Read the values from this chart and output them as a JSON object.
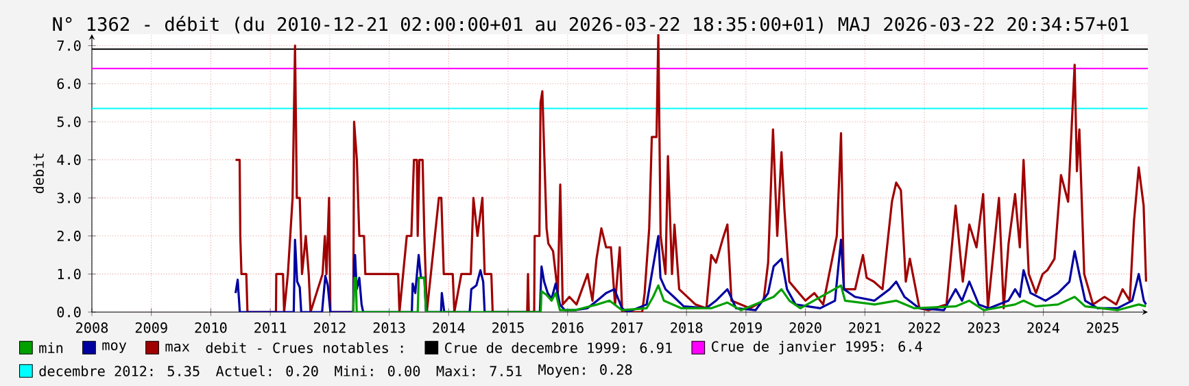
{
  "chart_data": {
    "type": "line",
    "title": "N° 1362 - débit (du 2010-12-21 02:00:00+01 au 2026-03-22 18:35:00+01) MAJ 2026-03-22 20:34:57+01",
    "ylabel": "debit",
    "xlim": [
      "2008-01-01",
      "2025-10-05"
    ],
    "ylim": [
      0,
      7.3
    ],
    "xticks": [
      "2008",
      "2009",
      "2010",
      "2011",
      "2012",
      "2013",
      "2014",
      "2015",
      "2016",
      "2017",
      "2018",
      "2019",
      "2020",
      "2021",
      "2022",
      "2023",
      "2024",
      "2025"
    ],
    "yticks": [
      {
        "value": 0,
        "label": "0.0"
      },
      {
        "value": 1,
        "label": "1.0"
      },
      {
        "value": 2,
        "label": "2.0"
      },
      {
        "value": 3,
        "label": "3.0"
      },
      {
        "value": 4,
        "label": "4.0"
      },
      {
        "value": 5,
        "label": "5.0"
      },
      {
        "value": 6,
        "label": "6.0"
      },
      {
        "value": 7,
        "label": "7.0"
      }
    ],
    "grid": true,
    "legend": "bottom",
    "line_style": "solid",
    "series": [
      {
        "name": "min",
        "color": "#00a000",
        "x": [
          "2012-05-25",
          "2012-06-01",
          "2012-06-10",
          "2012-06-15",
          "2013-06-25",
          "2013-07-01",
          "2013-08-05",
          "2013-08-15",
          "2015-07-20",
          "2015-07-25",
          "2015-08-25",
          "2015-09-25",
          "2015-10-20",
          "2015-11-15",
          "2016-02-15",
          "2016-07-01",
          "2016-09-15",
          "2016-12-01",
          "2017-05-01",
          "2017-06-10",
          "2017-07-12",
          "2017-08-15",
          "2017-12-01",
          "2018-06-01",
          "2018-09-09",
          "2018-12-01",
          "2019-06-20",
          "2019-08-07",
          "2019-09-25",
          "2019-12-01",
          "2020-08-07",
          "2020-09-01",
          "2021-03-01",
          "2021-07-12",
          "2021-11-01",
          "2022-07-12",
          "2022-10-04",
          "2023-01-01",
          "2023-07-12",
          "2023-09-02",
          "2023-11-15",
          "2024-04-01",
          "2024-07-12",
          "2024-09-15",
          "2025-04-01",
          "2025-08-10",
          "2025-09-24"
        ],
        "values": [
          0,
          0.9,
          0.9,
          0,
          0,
          0.9,
          0.9,
          0,
          0,
          0.55,
          0.45,
          0.3,
          0.5,
          0.05,
          0.05,
          0.2,
          0.3,
          0.05,
          0.1,
          0.4,
          0.7,
          0.3,
          0.1,
          0.1,
          0.25,
          0.05,
          0.4,
          0.6,
          0.3,
          0.1,
          0.7,
          0.3,
          0.2,
          0.3,
          0.1,
          0.15,
          0.3,
          0.05,
          0.2,
          0.3,
          0.15,
          0.2,
          0.4,
          0.15,
          0.05,
          0.2,
          0.15
        ]
      },
      {
        "name": "moy",
        "color": "#0000a0",
        "x": [
          "2010-06-02",
          "2010-06-15",
          "2010-06-28",
          "2011-05-25",
          "2011-06-02",
          "2011-06-15",
          "2011-07-01",
          "2011-07-10",
          "2011-11-15",
          "2011-11-20",
          "2011-12-05",
          "2011-12-20",
          "2012-01-05",
          "2012-05-25",
          "2012-05-30",
          "2012-06-05",
          "2012-06-15",
          "2012-07-01",
          "2012-07-15",
          "2012-07-25",
          "2013-05-20",
          "2013-05-25",
          "2013-06-10",
          "2013-07-01",
          "2013-07-15",
          "2013-08-05",
          "2013-08-15",
          "2013-11-15",
          "2013-11-20",
          "2013-12-05",
          "2014-05-10",
          "2014-05-20",
          "2014-06-20",
          "2014-07-15",
          "2014-08-01",
          "2014-08-10",
          "2015-07-15",
          "2015-07-25",
          "2015-08-10",
          "2015-09-01",
          "2015-09-25",
          "2015-10-20",
          "2015-11-15",
          "2015-12-15",
          "2016-02-15",
          "2016-05-01",
          "2016-07-01",
          "2016-08-25",
          "2016-10-15",
          "2016-12-01",
          "2017-01-05",
          "2017-05-01",
          "2017-06-10",
          "2017-07-12",
          "2017-07-25",
          "2017-08-25",
          "2017-10-15",
          "2017-12-15",
          "2018-05-01",
          "2018-07-01",
          "2018-09-09",
          "2018-11-01",
          "2019-03-01",
          "2019-05-17",
          "2019-06-20",
          "2019-08-07",
          "2019-09-10",
          "2019-11-01",
          "2020-04-01",
          "2020-07-01",
          "2020-08-07",
          "2020-08-25",
          "2020-11-01",
          "2021-03-01",
          "2021-06-01",
          "2021-07-12",
          "2021-09-01",
          "2021-12-01",
          "2022-05-01",
          "2022-07-12",
          "2022-08-20",
          "2022-10-04",
          "2022-12-01",
          "2023-02-01",
          "2023-06-01",
          "2023-07-12",
          "2023-08-10",
          "2023-09-02",
          "2023-10-15",
          "2024-01-15",
          "2024-04-01",
          "2024-06-10",
          "2024-07-12",
          "2024-08-10",
          "2024-09-15",
          "2024-12-01",
          "2025-04-01",
          "2025-07-01",
          "2025-08-10",
          "2025-09-10",
          "2025-09-24"
        ],
        "values": [
          0.5,
          0.85,
          0,
          0,
          1.9,
          0.8,
          0.65,
          0,
          0,
          0.25,
          0.95,
          0.7,
          0,
          0,
          1.35,
          1.5,
          0.6,
          0.9,
          0.2,
          0,
          0,
          0.75,
          0.5,
          1.5,
          0.9,
          0.9,
          0,
          0,
          0.5,
          0,
          0,
          0.6,
          0.7,
          1.1,
          0.8,
          0,
          0,
          1.2,
          0.8,
          0.5,
          0.35,
          0.75,
          0.2,
          0.05,
          0.05,
          0.1,
          0.3,
          0.5,
          0.6,
          0.1,
          0,
          0.2,
          1.2,
          2.0,
          0.9,
          0.6,
          0.4,
          0.15,
          0.1,
          0.3,
          0.6,
          0.1,
          0.05,
          0.5,
          1.2,
          1.4,
          0.6,
          0.2,
          0.1,
          0.3,
          1.9,
          0.6,
          0.4,
          0.3,
          0.6,
          0.8,
          0.4,
          0.1,
          0.05,
          0.6,
          0.3,
          0.8,
          0.2,
          0.1,
          0.3,
          0.6,
          0.4,
          1.1,
          0.5,
          0.3,
          0.5,
          0.8,
          1.6,
          1.0,
          0.3,
          0.1,
          0.1,
          0.3,
          1.0,
          0.3,
          0.2
        ]
      },
      {
        "name": "max",
        "color": "#a00000",
        "x": [
          "2010-06-02",
          "2010-06-27",
          "2010-07-01",
          "2010-07-08",
          "2010-08-07",
          "2010-08-14",
          "2011-02-05",
          "2011-02-07",
          "2011-03-20",
          "2011-03-27",
          "2011-04-19",
          "2011-05-18",
          "2011-06-02",
          "2011-06-13",
          "2011-07-01",
          "2011-07-15",
          "2011-08-07",
          "2011-08-25",
          "2011-09-05",
          "2011-11-18",
          "2011-12-02",
          "2011-12-12",
          "2011-12-28",
          "2012-01-05",
          "2012-05-25",
          "2012-05-30",
          "2012-06-16",
          "2012-07-01",
          "2012-07-30",
          "2012-08-07",
          "2013-02-25",
          "2013-03-05",
          "2013-04-19",
          "2013-05-17",
          "2013-06-02",
          "2013-06-20",
          "2013-06-25",
          "2013-07-05",
          "2013-07-25",
          "2013-08-05",
          "2013-08-20",
          "2013-11-02",
          "2013-11-17",
          "2013-12-02",
          "2014-01-26",
          "2014-02-05",
          "2014-03-20",
          "2014-05-17",
          "2014-06-02",
          "2014-06-27",
          "2014-07-27",
          "2014-08-10",
          "2014-09-20",
          "2014-09-28",
          "2015-04-28",
          "2015-05-03",
          "2015-05-08",
          "2015-06-10",
          "2015-06-13",
          "2015-07-12",
          "2015-07-19",
          "2015-07-30",
          "2015-08-25",
          "2015-09-05",
          "2015-10-04",
          "2015-11-02",
          "2015-11-17",
          "2015-12-02",
          "2016-01-12",
          "2016-02-25",
          "2016-05-03",
          "2016-06-02",
          "2016-06-27",
          "2016-07-27",
          "2016-08-25",
          "2016-09-24",
          "2016-10-19",
          "2016-11-17",
          "2016-12-02",
          "2017-04-04",
          "2017-04-19",
          "2017-05-17",
          "2017-06-02",
          "2017-07-01",
          "2017-07-12",
          "2017-07-26",
          "2017-08-25",
          "2017-09-09",
          "2017-10-04",
          "2017-10-19",
          "2017-11-17",
          "2018-02-25",
          "2018-05-03",
          "2018-06-02",
          "2018-07-01",
          "2018-08-10",
          "2018-09-09",
          "2018-10-04",
          "2019-01-26",
          "2019-04-19",
          "2019-05-17",
          "2019-06-16",
          "2019-07-12",
          "2019-08-07",
          "2019-08-25",
          "2019-09-24",
          "2019-11-02",
          "2020-01-01",
          "2020-02-25",
          "2020-04-19",
          "2020-07-12",
          "2020-08-07",
          "2020-08-25",
          "2020-11-02",
          "2020-12-20",
          "2021-01-12",
          "2021-02-25",
          "2021-04-19",
          "2021-06-16",
          "2021-07-12",
          "2021-08-10",
          "2021-09-09",
          "2021-10-04",
          "2021-12-02",
          "2022-01-26",
          "2022-05-17",
          "2022-07-12",
          "2022-08-25",
          "2022-10-04",
          "2022-11-17",
          "2022-12-28",
          "2023-01-26",
          "2023-04-04",
          "2023-05-03",
          "2023-06-02",
          "2023-07-12",
          "2023-08-10",
          "2023-09-02",
          "2023-10-04",
          "2023-11-17",
          "2023-12-28",
          "2024-01-26",
          "2024-03-10",
          "2024-04-19",
          "2024-06-02",
          "2024-07-12",
          "2024-07-26",
          "2024-08-10",
          "2024-09-09",
          "2024-11-02",
          "2025-01-12",
          "2025-03-25",
          "2025-05-03",
          "2025-06-16",
          "2025-07-12",
          "2025-08-10",
          "2025-09-09",
          "2025-09-24"
        ],
        "values": [
          4.0,
          4.0,
          2.0,
          1.0,
          1.0,
          0,
          0,
          1.0,
          1.0,
          0,
          1.0,
          3.0,
          7.0,
          3.0,
          3.0,
          1.0,
          2.0,
          1.0,
          0,
          1.0,
          2.0,
          1.0,
          3.0,
          0,
          0,
          5.0,
          4.0,
          2.0,
          2.0,
          1.0,
          1.0,
          0,
          2.0,
          2.0,
          4.0,
          4.0,
          2.0,
          4.0,
          4.0,
          2.0,
          0,
          3.0,
          3.0,
          1.0,
          1.0,
          0,
          1.0,
          1.0,
          3.0,
          2.0,
          3.0,
          1.0,
          1.0,
          0,
          0,
          1.0,
          0,
          0,
          2.0,
          2.0,
          5.5,
          5.8,
          2.2,
          1.8,
          1.6,
          0.5,
          3.35,
          0.2,
          0.4,
          0.2,
          1.0,
          0.3,
          1.4,
          2.2,
          1.7,
          1.7,
          0.2,
          1.7,
          0,
          0,
          0.5,
          2.2,
          4.6,
          4.6,
          7.3,
          2.0,
          1.0,
          4.1,
          1.0,
          2.3,
          0.6,
          0.2,
          0.1,
          1.5,
          1.3,
          1.9,
          2.3,
          0.3,
          0.1,
          0.3,
          1.3,
          4.8,
          2.0,
          4.2,
          2.7,
          0.8,
          0.6,
          0.3,
          0.5,
          0.2,
          2.0,
          4.7,
          0.6,
          0.6,
          1.5,
          0.9,
          0.8,
          0.6,
          2.9,
          3.4,
          3.2,
          0.8,
          1.4,
          0.1,
          0.05,
          0.2,
          2.8,
          0.8,
          2.3,
          1.7,
          3.1,
          0.1,
          3.0,
          0.1,
          1.8,
          3.1,
          1.7,
          4.0,
          1.0,
          0.5,
          1.0,
          1.1,
          1.4,
          3.6,
          2.9,
          6.5,
          3.7,
          4.8,
          1.0,
          0.2,
          0.4,
          0.2,
          0.6,
          0.3,
          2.4,
          3.8,
          2.8,
          0.8
        ]
      }
    ],
    "ref_lines": [
      {
        "axis": "y",
        "value": 6.91,
        "label": "Crue de decembre 1999: 6.91",
        "color": "#000000"
      },
      {
        "axis": "y",
        "value": 6.4,
        "label": "Crue de janvier 1995: 6.4",
        "color": "#ff00ff"
      },
      {
        "axis": "y",
        "value": 5.35,
        "label": "decembre 2012: 5.35",
        "color": "#00ffff"
      }
    ],
    "annotations": [
      "debit - Crues notables :",
      "Actuel: 0.20",
      "Mini: 0.00",
      "Maxi: 7.51",
      "Moyen: 0.28"
    ]
  }
}
